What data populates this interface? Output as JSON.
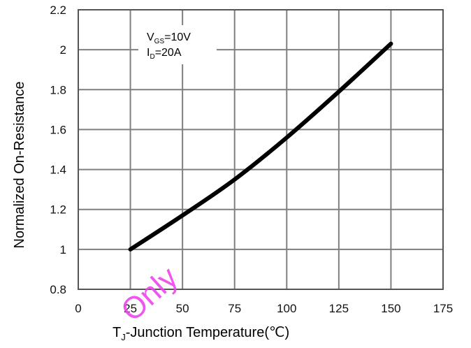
{
  "chart_data": {
    "type": "line",
    "title": "",
    "xlabel": {
      "main": "T",
      "sub": "J",
      "rest": "-Junction Temperature(℃)"
    },
    "ylabel": "Normalized On-Resistance",
    "xlim": [
      0,
      175
    ],
    "ylim": [
      0.8,
      2.2
    ],
    "x_ticks": [
      "0",
      "25",
      "50",
      "75",
      "100",
      "125",
      "150",
      "175"
    ],
    "y_ticks": [
      "0.8",
      "1",
      "1.2",
      "1.4",
      "1.6",
      "1.8",
      "2",
      "2.2"
    ],
    "grid": true,
    "series": [
      {
        "x": [
          25,
          50,
          75,
          100,
          125,
          150
        ],
        "y": [
          1.0,
          1.17,
          1.35,
          1.56,
          1.79,
          2.03
        ]
      }
    ],
    "annotations": {
      "vgs": {
        "main": "V",
        "sub": "GS",
        "rest": "=10V"
      },
      "id": {
        "main": "I",
        "sub": "D",
        "rest": "=20A"
      }
    },
    "watermark": "Only",
    "colors": {
      "line": "#000000",
      "grid": "#7f7f7f",
      "watermark": "#ee44ee"
    }
  }
}
